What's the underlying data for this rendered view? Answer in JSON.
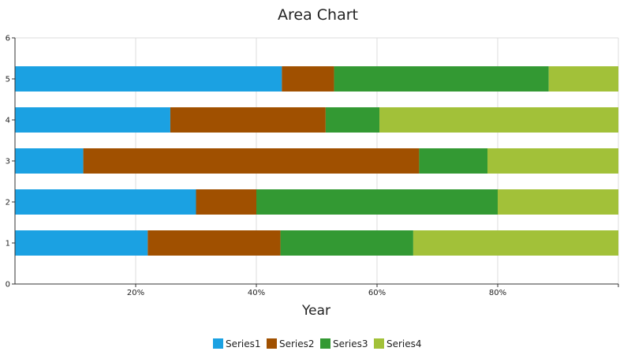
{
  "chart_data": {
    "type": "bar",
    "orientation": "horizontal",
    "stacking": "percent",
    "title": "Area Chart",
    "xlabel": "Year",
    "ylabel": "",
    "categories": [
      1,
      2,
      3,
      4,
      5
    ],
    "series": [
      {
        "name": "Series1",
        "color": "#1ba1e2",
        "values": [
          22,
          30,
          12,
          26,
          46
        ]
      },
      {
        "name": "Series2",
        "color": "#a05000",
        "values": [
          22,
          10,
          59,
          26,
          9
        ]
      },
      {
        "name": "Series3",
        "color": "#339933",
        "values": [
          22,
          40,
          12,
          9,
          37
        ]
      },
      {
        "name": "Series4",
        "color": "#a2c139",
        "values": [
          34,
          20,
          23,
          40,
          12
        ]
      }
    ],
    "xlim": [
      0,
      100
    ],
    "x_ticks": [
      {
        "value": 20,
        "label": "20%"
      },
      {
        "value": 40,
        "label": "40%"
      },
      {
        "value": 60,
        "label": "60%"
      },
      {
        "value": 80,
        "label": "80%"
      }
    ],
    "ylim": [
      0,
      6
    ],
    "y_ticks": [
      "0",
      "1",
      "2",
      "3",
      "4",
      "5",
      "6"
    ],
    "grid": true,
    "legend_position": "bottom"
  }
}
